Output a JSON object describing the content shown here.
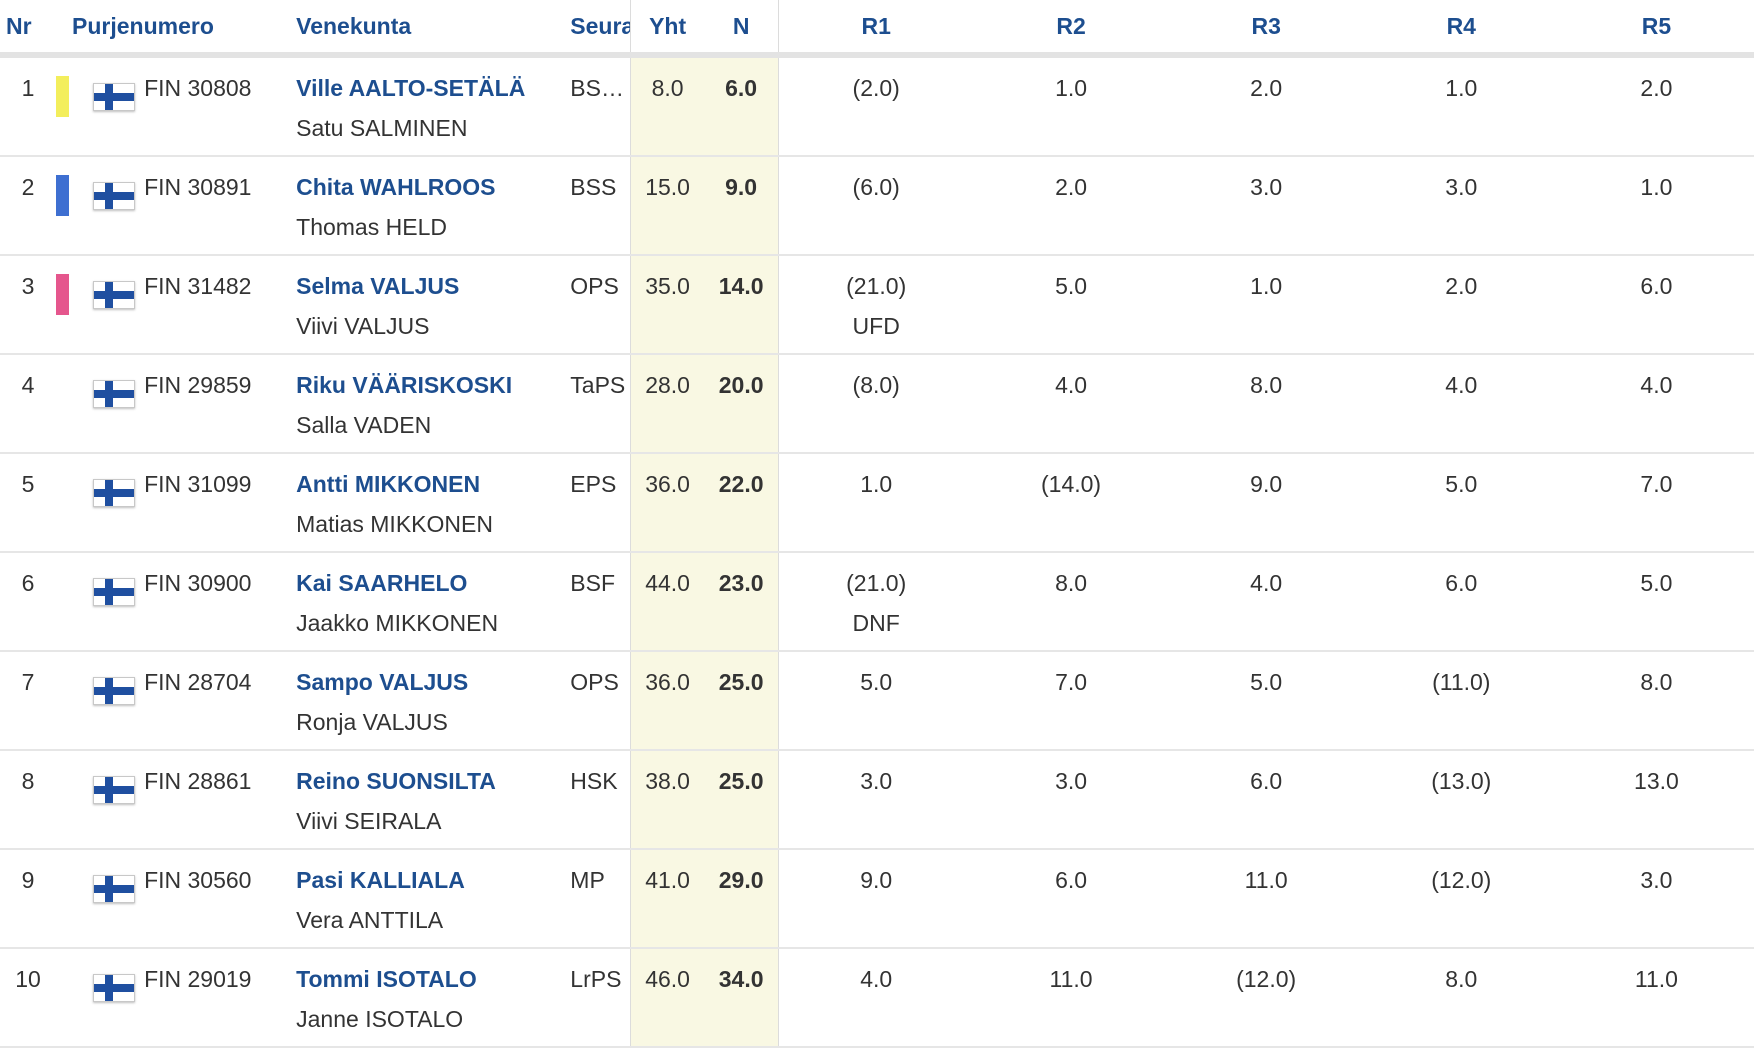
{
  "headers": {
    "nr": "Nr",
    "sail_number": "Purjenumero",
    "crew": "Venekunta",
    "club": "Seura",
    "total": "Yht",
    "net": "N",
    "races": [
      "R1",
      "R2",
      "R3",
      "R4",
      "R5"
    ]
  },
  "flag_icon": "finland-flag-icon",
  "rows": [
    {
      "nr": "1",
      "marker_color": "#f3ee5c",
      "sail": "FIN 30808",
      "skipper": "Ville AALTO-SETÄLÄ",
      "crew": "Satu SALMINEN",
      "club": "BS…",
      "total": "8.0",
      "net": "6.0",
      "races": [
        {
          "score": "(2.0)",
          "note": ""
        },
        {
          "score": "1.0",
          "note": ""
        },
        {
          "score": "2.0",
          "note": ""
        },
        {
          "score": "1.0",
          "note": ""
        },
        {
          "score": "2.0",
          "note": ""
        }
      ]
    },
    {
      "nr": "2",
      "marker_color": "#3e6fd1",
      "sail": "FIN 30891",
      "skipper": "Chita WAHLROOS",
      "crew": "Thomas HELD",
      "club": "BSS",
      "total": "15.0",
      "net": "9.0",
      "races": [
        {
          "score": "(6.0)",
          "note": ""
        },
        {
          "score": "2.0",
          "note": ""
        },
        {
          "score": "3.0",
          "note": ""
        },
        {
          "score": "3.0",
          "note": ""
        },
        {
          "score": "1.0",
          "note": ""
        }
      ]
    },
    {
      "nr": "3",
      "marker_color": "#e5568d",
      "sail": "FIN 31482",
      "skipper": "Selma VALJUS",
      "crew": "Viivi VALJUS",
      "club": "OPS",
      "total": "35.0",
      "net": "14.0",
      "races": [
        {
          "score": "(21.0)",
          "note": "UFD"
        },
        {
          "score": "5.0",
          "note": ""
        },
        {
          "score": "1.0",
          "note": ""
        },
        {
          "score": "2.0",
          "note": ""
        },
        {
          "score": "6.0",
          "note": ""
        }
      ]
    },
    {
      "nr": "4",
      "marker_color": "",
      "sail": "FIN 29859",
      "skipper": "Riku VÄÄRISKOSKI",
      "crew": "Salla VADEN",
      "club": "TaPS",
      "total": "28.0",
      "net": "20.0",
      "races": [
        {
          "score": "(8.0)",
          "note": ""
        },
        {
          "score": "4.0",
          "note": ""
        },
        {
          "score": "8.0",
          "note": ""
        },
        {
          "score": "4.0",
          "note": ""
        },
        {
          "score": "4.0",
          "note": ""
        }
      ]
    },
    {
      "nr": "5",
      "marker_color": "",
      "sail": "FIN 31099",
      "skipper": "Antti MIKKONEN",
      "crew": "Matias MIKKONEN",
      "club": "EPS",
      "total": "36.0",
      "net": "22.0",
      "races": [
        {
          "score": "1.0",
          "note": ""
        },
        {
          "score": "(14.0)",
          "note": ""
        },
        {
          "score": "9.0",
          "note": ""
        },
        {
          "score": "5.0",
          "note": ""
        },
        {
          "score": "7.0",
          "note": ""
        }
      ]
    },
    {
      "nr": "6",
      "marker_color": "",
      "sail": "FIN 30900",
      "skipper": "Kai SAARHELO",
      "crew": "Jaakko MIKKONEN",
      "club": "BSF",
      "total": "44.0",
      "net": "23.0",
      "races": [
        {
          "score": "(21.0)",
          "note": "DNF"
        },
        {
          "score": "8.0",
          "note": ""
        },
        {
          "score": "4.0",
          "note": ""
        },
        {
          "score": "6.0",
          "note": ""
        },
        {
          "score": "5.0",
          "note": ""
        }
      ]
    },
    {
      "nr": "7",
      "marker_color": "",
      "sail": "FIN 28704",
      "skipper": "Sampo VALJUS",
      "crew": "Ronja VALJUS",
      "club": "OPS",
      "total": "36.0",
      "net": "25.0",
      "races": [
        {
          "score": "5.0",
          "note": ""
        },
        {
          "score": "7.0",
          "note": ""
        },
        {
          "score": "5.0",
          "note": ""
        },
        {
          "score": "(11.0)",
          "note": ""
        },
        {
          "score": "8.0",
          "note": ""
        }
      ]
    },
    {
      "nr": "8",
      "marker_color": "",
      "sail": "FIN 28861",
      "skipper": "Reino SUONSILTA",
      "crew": "Viivi SEIRALA",
      "club": "HSK",
      "total": "38.0",
      "net": "25.0",
      "races": [
        {
          "score": "3.0",
          "note": ""
        },
        {
          "score": "3.0",
          "note": ""
        },
        {
          "score": "6.0",
          "note": ""
        },
        {
          "score": "(13.0)",
          "note": ""
        },
        {
          "score": "13.0",
          "note": ""
        }
      ]
    },
    {
      "nr": "9",
      "marker_color": "",
      "sail": "FIN 30560",
      "skipper": "Pasi KALLIALA",
      "crew": "Vera ANTTILA",
      "club": "MP",
      "total": "41.0",
      "net": "29.0",
      "races": [
        {
          "score": "9.0",
          "note": ""
        },
        {
          "score": "6.0",
          "note": ""
        },
        {
          "score": "11.0",
          "note": ""
        },
        {
          "score": "(12.0)",
          "note": ""
        },
        {
          "score": "3.0",
          "note": ""
        }
      ]
    },
    {
      "nr": "10",
      "marker_color": "",
      "sail": "FIN 29019",
      "skipper": "Tommi ISOTALO",
      "crew": "Janne ISOTALO",
      "club": "LrPS",
      "total": "46.0",
      "net": "34.0",
      "races": [
        {
          "score": "4.0",
          "note": ""
        },
        {
          "score": "11.0",
          "note": ""
        },
        {
          "score": "(12.0)",
          "note": ""
        },
        {
          "score": "8.0",
          "note": ""
        },
        {
          "score": "11.0",
          "note": ""
        }
      ]
    }
  ]
}
